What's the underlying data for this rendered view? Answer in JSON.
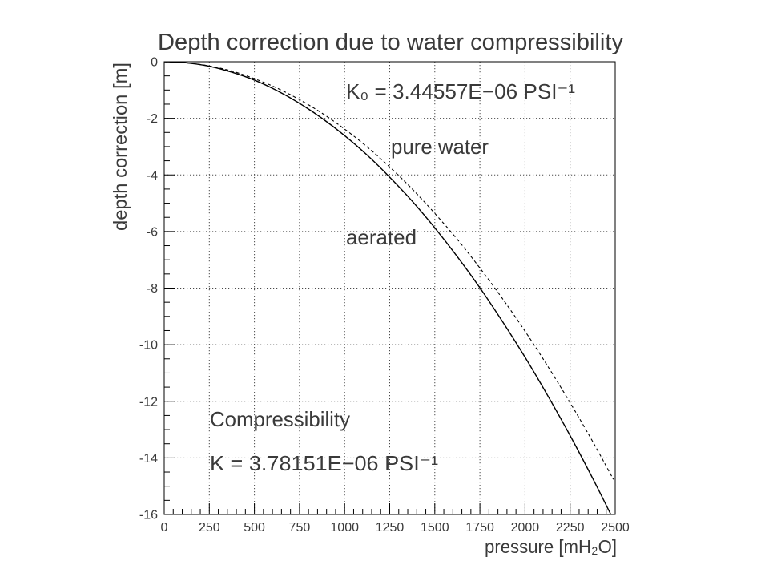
{
  "chart_data": {
    "type": "line",
    "title": "Depth correction due to water compressibility",
    "xlabel": "pressure [mH₂O]",
    "ylabel": "depth correction [m]",
    "xlim": [
      0,
      2500
    ],
    "ylim": [
      -16,
      0
    ],
    "x_ticks": [
      0,
      250,
      500,
      750,
      1000,
      1250,
      1500,
      1750,
      2000,
      2250,
      2500
    ],
    "y_ticks": [
      0,
      -2,
      -4,
      -6,
      -8,
      -10,
      -12,
      -14,
      -16
    ],
    "grid": true,
    "series": [
      {
        "name": "aerated",
        "color": "#000000",
        "dashed": false,
        "x": [
          0,
          125,
          250,
          375,
          500,
          625,
          750,
          875,
          1000,
          1125,
          1250,
          1375,
          1500,
          1625,
          1750,
          1875,
          2000,
          2125,
          2250,
          2375,
          2475
        ],
        "y": [
          0,
          -0.04,
          -0.16,
          -0.37,
          -0.65,
          -1.02,
          -1.47,
          -2.0,
          -2.61,
          -3.3,
          -4.08,
          -4.93,
          -5.87,
          -6.89,
          -7.99,
          -9.18,
          -10.44,
          -11.79,
          -13.21,
          -14.72,
          -15.99
        ]
      },
      {
        "name": "pure water",
        "color": "#000000",
        "dashed": true,
        "x": [
          0,
          125,
          250,
          375,
          500,
          625,
          750,
          875,
          1000,
          1125,
          1250,
          1375,
          1500,
          1625,
          1750,
          1875,
          2000,
          2125,
          2250,
          2375,
          2490
        ],
        "y": [
          0,
          -0.04,
          -0.15,
          -0.33,
          -0.6,
          -0.93,
          -1.34,
          -1.82,
          -2.38,
          -3.01,
          -3.72,
          -4.5,
          -5.36,
          -6.28,
          -7.29,
          -8.37,
          -9.52,
          -10.75,
          -12.05,
          -13.42,
          -14.76
        ]
      }
    ],
    "annotations": {
      "k0": "K₀ = 3.44557E−06 PSI⁻¹",
      "compressibility": "Compressibility",
      "k": "K = 3.78151E−06 PSI⁻¹"
    }
  }
}
